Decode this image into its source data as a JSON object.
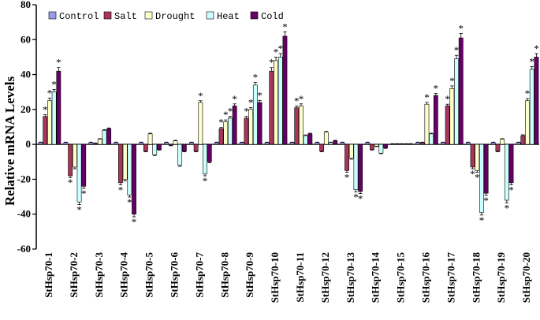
{
  "chart_data": {
    "type": "bar",
    "title": "",
    "xlabel": "",
    "ylabel": "Relative mRNA Levels",
    "ylim": [
      -60,
      80
    ],
    "yticks": [
      -60,
      -40,
      -20,
      0,
      20,
      40,
      60,
      80
    ],
    "grid": false,
    "legend_position": "top-left",
    "categories": [
      "StHsp70-1",
      "StHsp70-2",
      "StHsp70-3",
      "StHsp70-4",
      "StHsp70-5",
      "StHsp70-6",
      "StHsp70-7",
      "StHsp70-8",
      "StHsp70-9",
      "StHsp70-10",
      "StHsp70-11",
      "StHsp70-12",
      "StHsp70-13",
      "StHsp70-14",
      "StHsp70-15",
      "StHsp70-16",
      "StHsp70-17",
      "StHsp70-18",
      "StHsp70-19",
      "StHsp70-20"
    ],
    "series": [
      {
        "name": "Control",
        "color": "#9a9aee",
        "values": [
          1,
          1,
          1,
          1,
          1,
          1,
          1,
          1,
          1,
          1,
          1,
          1,
          1,
          1,
          0.3,
          1,
          1,
          1,
          1,
          1
        ],
        "errors": [
          0.3,
          0.3,
          0.3,
          0.3,
          0.3,
          0.3,
          0.3,
          0.3,
          0.3,
          0.3,
          0.3,
          0.3,
          0.3,
          0.3,
          0.1,
          0.3,
          0.3,
          0.3,
          0.3,
          0.3
        ],
        "significant": [
          false,
          false,
          false,
          false,
          false,
          false,
          false,
          false,
          false,
          false,
          false,
          false,
          false,
          false,
          false,
          false,
          false,
          false,
          false,
          false
        ]
      },
      {
        "name": "Salt",
        "color": "#a8365a",
        "values": [
          16,
          -18,
          0.5,
          -22,
          -4,
          -0.5,
          -4,
          9,
          15,
          42,
          21,
          -4,
          -15,
          -3,
          0.3,
          1,
          22,
          -13,
          -4,
          5
        ],
        "errors": [
          1,
          1,
          0.3,
          1.2,
          0.3,
          0.3,
          0.3,
          0.8,
          1,
          2,
          1,
          0.3,
          1,
          0.3,
          0.1,
          0.3,
          1,
          1,
          0.3,
          0.5
        ],
        "significant": [
          true,
          true,
          false,
          true,
          false,
          false,
          false,
          true,
          true,
          true,
          true,
          false,
          true,
          false,
          false,
          false,
          true,
          true,
          false,
          false
        ]
      },
      {
        "name": "Drought",
        "color": "#ffffcc",
        "values": [
          25,
          -13,
          3,
          -20,
          6,
          2,
          24,
          13,
          20,
          48,
          22,
          7,
          -8,
          -1,
          0.3,
          23,
          32,
          -15,
          3,
          25
        ],
        "errors": [
          1.5,
          1,
          0.3,
          1,
          0.4,
          0.3,
          1,
          1,
          1,
          2,
          1.2,
          0.4,
          0.5,
          0.3,
          0.1,
          1,
          1.5,
          1,
          0.3,
          1.2
        ],
        "significant": [
          true,
          false,
          false,
          false,
          false,
          false,
          true,
          true,
          true,
          true,
          true,
          false,
          false,
          false,
          false,
          true,
          true,
          true,
          false,
          true
        ]
      },
      {
        "name": "Heat",
        "color": "#ccffff",
        "values": [
          30,
          -33,
          8,
          -29,
          -6,
          -12,
          -17,
          15,
          34,
          50,
          5,
          1,
          -26,
          -5,
          0.3,
          6,
          49,
          -39,
          -32,
          43
        ],
        "errors": [
          1.5,
          1.5,
          0.4,
          1.2,
          0.4,
          0.6,
          1,
          1,
          1.5,
          2,
          0.4,
          0.3,
          1.2,
          0.4,
          0.1,
          0.4,
          2,
          1.5,
          1.5,
          1.5
        ],
        "significant": [
          true,
          true,
          false,
          true,
          false,
          false,
          true,
          true,
          true,
          true,
          false,
          false,
          true,
          false,
          false,
          false,
          true,
          true,
          true,
          true
        ]
      },
      {
        "name": "Cold",
        "color": "#660066",
        "values": [
          42,
          -24,
          9,
          -40,
          -3,
          -4,
          -10,
          22,
          24,
          62,
          6,
          2,
          -27,
          -2,
          0.3,
          28,
          61,
          -28,
          -22,
          50
        ],
        "errors": [
          2,
          1.2,
          0.4,
          1.5,
          0.3,
          0.3,
          0.6,
          1.2,
          1.2,
          2.5,
          0.4,
          0.3,
          1.2,
          0.3,
          0.1,
          1.2,
          2.5,
          1.2,
          1.2,
          2
        ],
        "significant": [
          true,
          true,
          false,
          true,
          false,
          false,
          false,
          true,
          true,
          true,
          false,
          false,
          true,
          false,
          false,
          true,
          true,
          true,
          true,
          true
        ]
      }
    ],
    "significance_marker": "*"
  }
}
